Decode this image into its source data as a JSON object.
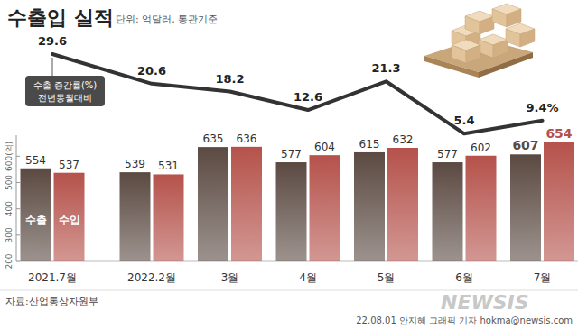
{
  "chart_data": {
    "type": "bar",
    "title": "수출입 실적",
    "subtitle": "단위: 억달러, 통관기준",
    "source": "자료:산업통상자원부",
    "credit": "22.08.01 안지혜 그래픽 기자 hokma@newsis.com",
    "watermark": "NEWSIS",
    "annotation": "전년동월대비",
    "categories": [
      "2021.7월",
      "2022.2월",
      "3월",
      "4월",
      "5월",
      "6월",
      "7월"
    ],
    "series": [
      {
        "name": "수출",
        "color": "#5b4a42",
        "values": [
          554,
          539,
          635,
          577,
          615,
          577,
          607
        ]
      },
      {
        "name": "수입",
        "color": "#b5524b",
        "values": [
          537,
          531,
          636,
          604,
          632,
          602,
          654
        ]
      },
      {
        "name": "수출 증감률(%)",
        "type": "line",
        "axis": "y2",
        "color": "#333333",
        "marker": "none",
        "values": [
          29.6,
          20.6,
          18.2,
          12.6,
          21.3,
          5.4,
          9.4
        ],
        "value_labels": [
          "29.6",
          "20.6",
          "18.2",
          "12.6",
          "21.3",
          "5.4",
          "9.4%"
        ]
      }
    ],
    "ylim": [
      200,
      680
    ],
    "yticks": [
      200,
      300,
      400,
      500,
      {
        "value": 600,
        "label": "600(억)"
      }
    ],
    "y2lim": [
      0,
      40
    ],
    "y2ticks": [],
    "data_labels": true,
    "grid": false
  }
}
